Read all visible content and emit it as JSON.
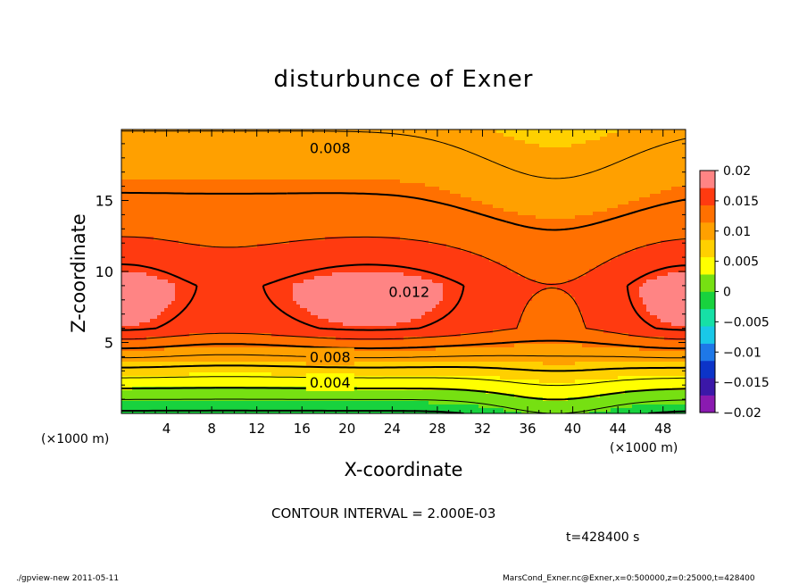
{
  "chart_data": {
    "type": "heatmap",
    "title": "disturbunce of Exner",
    "xlabel": "X-coordinate",
    "ylabel": "Z-coordinate",
    "x_unit": "(×1000 m)",
    "xlim": [
      0,
      50
    ],
    "ylim": [
      0,
      20
    ],
    "x_ticks": [
      4,
      8,
      12,
      16,
      20,
      24,
      28,
      32,
      36,
      40,
      44,
      48
    ],
    "y_ticks": [
      5,
      10,
      15
    ],
    "colorbar": {
      "ticks": [
        "0.02",
        "0.015",
        "0.01",
        "0.005",
        "0",
        "−0.005",
        "−0.01",
        "−0.015",
        "−0.02"
      ],
      "range": [
        -0.02,
        0.02
      ],
      "step": 0.0025
    },
    "contour_labels": [
      {
        "text": "0.008",
        "x": 18.5,
        "z": 18.7
      },
      {
        "text": "0.012",
        "x": 25.5,
        "z": 8.6
      },
      {
        "text": "0.008",
        "x": 18.5,
        "z": 4.0
      },
      {
        "text": "0.004",
        "x": 18.5,
        "z": 2.2
      }
    ],
    "contour_interval_text": "CONTOUR INTERVAL = 2.000E-03",
    "time_text": "t=428400 s",
    "footer_left": "./gpview-new   2011-05-11",
    "footer_right": "MarsCond_Exner.nc@Exner,x=0:500000,z=0:25000,t=428400"
  }
}
